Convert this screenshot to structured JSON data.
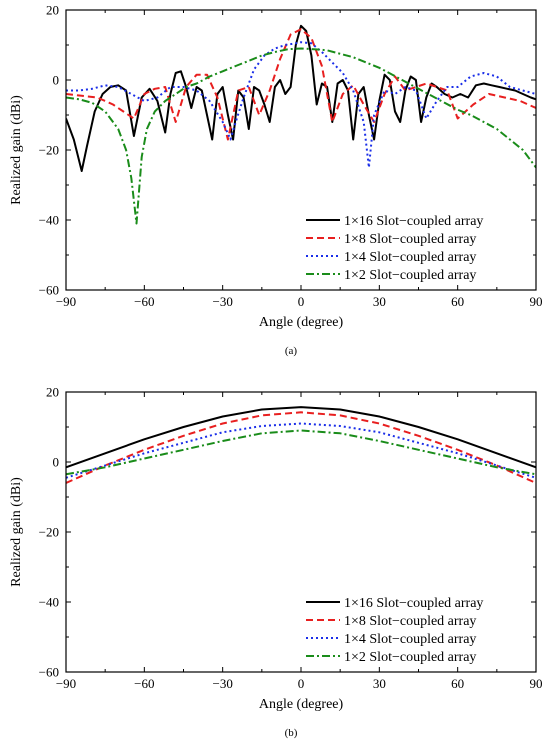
{
  "chart_data": [
    {
      "type": "line",
      "panel": "(a)",
      "xlabel": "Angle (degree)",
      "ylabel": "Realized gain (dBi)",
      "xlim": [
        -90,
        90
      ],
      "ylim": [
        -60,
        20
      ],
      "xticks": [
        -90,
        -60,
        -30,
        0,
        30,
        60,
        90
      ],
      "yticks": [
        -60,
        -40,
        -20,
        0,
        20
      ],
      "grid": false,
      "legend_position": "bottom-right",
      "series": [
        {
          "name": "1×16 Slot−coupled array",
          "color": "#000000",
          "dash": "solid",
          "x": [
            -90,
            -87,
            -84,
            -82,
            -79,
            -76,
            -73,
            -70,
            -67,
            -64,
            -61,
            -58,
            -55,
            -52,
            -50,
            -48,
            -46,
            -44,
            -42,
            -40,
            -38,
            -36,
            -34,
            -32,
            -30,
            -28,
            -26,
            -24,
            -22,
            -20,
            -18,
            -16,
            -14,
            -12,
            -10,
            -8,
            -6,
            -4,
            -2,
            0,
            2,
            4,
            6,
            8,
            10,
            12,
            14,
            16,
            18,
            20,
            22,
            24,
            26,
            28,
            30,
            32,
            34,
            36,
            38,
            40,
            42,
            44,
            46,
            48,
            50,
            52,
            55,
            58,
            61,
            64,
            67,
            70,
            73,
            76,
            79,
            82,
            85,
            88,
            90
          ],
          "y": [
            -11,
            -17,
            -26,
            -19,
            -9,
            -4,
            -2,
            -1.5,
            -3,
            -16,
            -5,
            -2.5,
            -6,
            -15,
            -4,
            2,
            2.5,
            -2,
            -8,
            -2,
            -3,
            -10,
            -17,
            -4,
            -2,
            -10,
            -17,
            -3,
            -5,
            -14,
            -2,
            -3,
            -7,
            -12,
            -2,
            0,
            -4,
            -2,
            10,
            15.5,
            14,
            7,
            -7,
            -1,
            -2,
            -12,
            -1,
            0,
            -3,
            -17,
            -4,
            -2,
            -10,
            -17,
            -6,
            1.5,
            0,
            -9,
            -12,
            -3,
            1,
            0,
            -12,
            -5,
            -1,
            -2,
            -4,
            -5,
            -4,
            -5,
            -1.5,
            -1,
            -1.5,
            -2,
            -2.5,
            -3,
            -4,
            -5,
            -5.5
          ]
        },
        {
          "name": "1×8 Slot−coupled array",
          "color": "#e81f1f",
          "dash": "dashed",
          "x": [
            -90,
            -84,
            -78,
            -72,
            -68,
            -64,
            -60,
            -56,
            -52,
            -48,
            -44,
            -40,
            -36,
            -32,
            -28,
            -24,
            -20,
            -16,
            -12,
            -8,
            -4,
            0,
            4,
            8,
            12,
            16,
            20,
            24,
            28,
            32,
            36,
            40,
            44,
            48,
            52,
            56,
            60,
            66,
            72,
            78,
            84,
            90
          ],
          "y": [
            -4,
            -4.5,
            -5,
            -7,
            -9,
            -11,
            -4,
            -2.5,
            -2,
            -12,
            -2,
            1.5,
            1.5,
            -5,
            -17,
            -3,
            -2,
            -10,
            -3,
            6,
            13,
            14.5,
            12,
            4,
            -12,
            -4,
            -1.5,
            -7,
            -12,
            -4,
            1,
            -3,
            -2,
            -1,
            -2,
            -3,
            -11,
            -7,
            -4,
            -5,
            -6,
            -8
          ]
        },
        {
          "name": "1×4 Slot−coupled array",
          "color": "#1a2ee8",
          "dash": "dotted",
          "x": [
            -90,
            -85,
            -80,
            -75,
            -70,
            -65,
            -60,
            -55,
            -50,
            -45,
            -40,
            -35,
            -30,
            -27,
            -25,
            -22,
            -18,
            -14,
            -10,
            -6,
            -2,
            0,
            4,
            8,
            12,
            16,
            20,
            24,
            26,
            28,
            32,
            36,
            40,
            44,
            48,
            52,
            56,
            60,
            65,
            70,
            75,
            80,
            85,
            90
          ],
          "y": [
            -3,
            -3,
            -2.5,
            -1.5,
            -2,
            -4,
            -6,
            -5,
            -2,
            -2,
            -3,
            -6,
            -12,
            -17,
            -12,
            -5,
            3,
            7,
            9,
            10,
            10.5,
            10.8,
            10.5,
            8,
            5,
            2,
            -3,
            -12,
            -25,
            -10,
            -3,
            -4,
            -2,
            -3,
            -11,
            -6,
            -2,
            -2,
            1,
            2,
            1,
            -2,
            -3,
            -4
          ]
        },
        {
          "name": "1×2 Slot−coupled array",
          "color": "#1a8c1a",
          "dash": "dashdot",
          "x": [
            -90,
            -85,
            -80,
            -75,
            -70,
            -67,
            -65,
            -63,
            -61,
            -59,
            -56,
            -52,
            -48,
            -44,
            -40,
            -35,
            -30,
            -25,
            -20,
            -15,
            -10,
            -5,
            0,
            5,
            10,
            15,
            20,
            25,
            30,
            35,
            40,
            45,
            50,
            55,
            60,
            65,
            70,
            75,
            80,
            85,
            90
          ],
          "y": [
            -5,
            -5.5,
            -6.5,
            -9,
            -14,
            -20,
            -28,
            -41,
            -22,
            -14,
            -9,
            -6,
            -4,
            -2,
            -1,
            1,
            2.5,
            4,
            5.5,
            7,
            8,
            8.8,
            9,
            8.8,
            8.5,
            7.5,
            6.5,
            5,
            3.5,
            1.5,
            -0.5,
            -2.5,
            -4.5,
            -6.5,
            -8.5,
            -10,
            -12,
            -14,
            -17,
            -20,
            -25
          ]
        }
      ]
    },
    {
      "type": "line",
      "panel": "(b)",
      "xlabel": "Angle (degree)",
      "ylabel": "Realized gain (dBi)",
      "xlim": [
        -90,
        90
      ],
      "ylim": [
        -60,
        20
      ],
      "xticks": [
        -90,
        -60,
        -30,
        0,
        30,
        60,
        90
      ],
      "yticks": [
        -60,
        -40,
        -20,
        0,
        20
      ],
      "grid": false,
      "legend_position": "bottom-right",
      "series": [
        {
          "name": "1×16 Slot−coupled array",
          "color": "#000000",
          "dash": "solid",
          "x": [
            -90,
            -75,
            -60,
            -45,
            -30,
            -15,
            0,
            15,
            30,
            45,
            60,
            75,
            90
          ],
          "y": [
            -1.5,
            2.5,
            6.5,
            10,
            13,
            15,
            15.7,
            15,
            13,
            10,
            6.5,
            2.5,
            -1.5
          ]
        },
        {
          "name": "1×8 Slot−coupled array",
          "color": "#e81f1f",
          "dash": "dashed",
          "x": [
            -90,
            -75,
            -60,
            -45,
            -30,
            -15,
            0,
            15,
            30,
            45,
            60,
            75,
            90
          ],
          "y": [
            -6,
            -1,
            3.5,
            7.5,
            11,
            13.3,
            14.2,
            13.3,
            11,
            7.5,
            3.5,
            -1,
            -6
          ]
        },
        {
          "name": "1×4 Slot−coupled array",
          "color": "#1a2ee8",
          "dash": "dotted",
          "x": [
            -90,
            -75,
            -60,
            -45,
            -30,
            -15,
            0,
            15,
            30,
            45,
            60,
            75,
            90
          ],
          "y": [
            -4.5,
            -1,
            2.5,
            5.5,
            8.5,
            10.3,
            11,
            10.3,
            8.5,
            5.5,
            2.5,
            -1,
            -4.5
          ]
        },
        {
          "name": "1×2 Slot−coupled array",
          "color": "#1a8c1a",
          "dash": "dashdot",
          "x": [
            -90,
            -75,
            -60,
            -45,
            -30,
            -15,
            0,
            15,
            30,
            45,
            60,
            75,
            90
          ],
          "y": [
            -3.5,
            -1.5,
            1,
            3.5,
            6,
            8.2,
            9,
            8.2,
            6,
            3.5,
            1,
            -1.5,
            -3.5
          ]
        }
      ]
    }
  ]
}
